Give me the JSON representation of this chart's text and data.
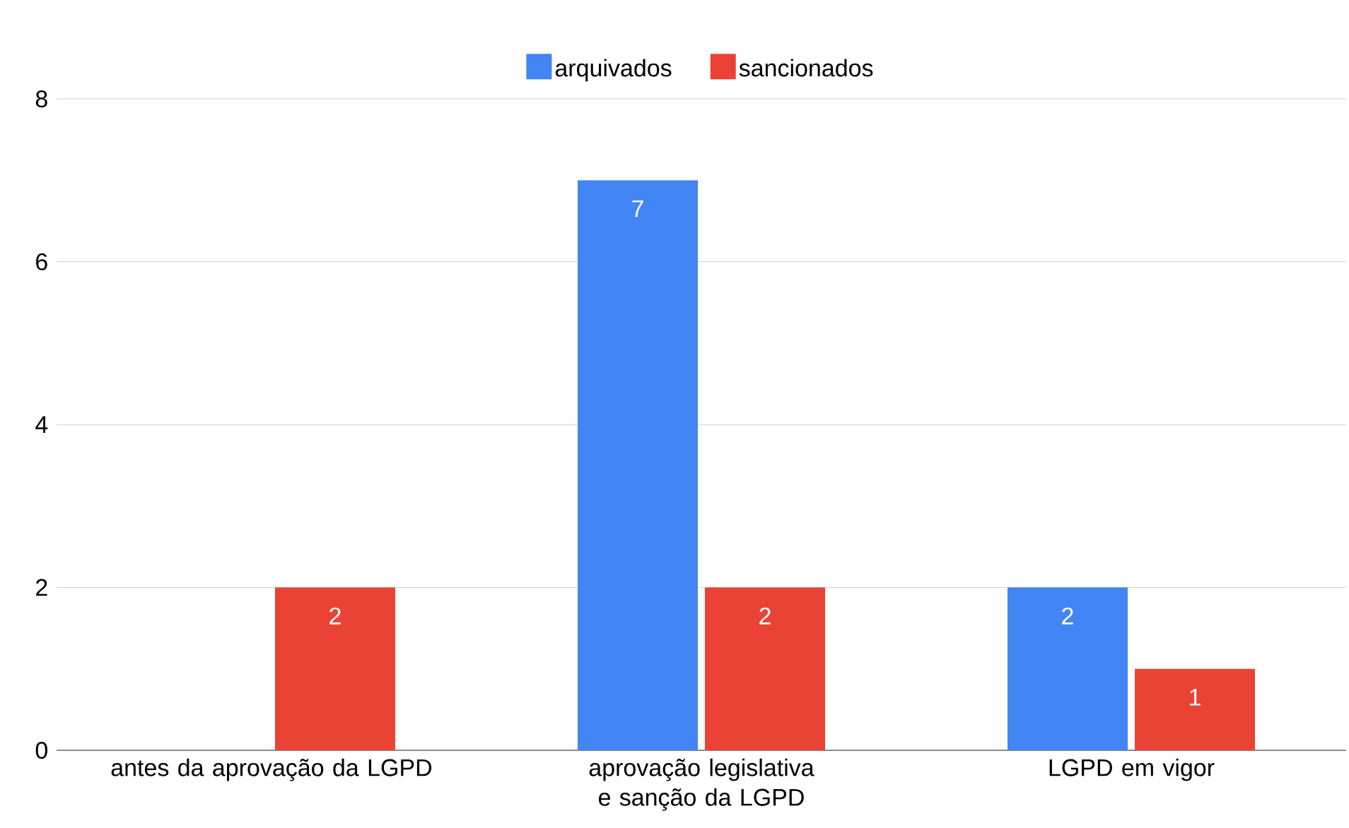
{
  "chart_data": {
    "type": "bar",
    "categories": [
      "antes da aprovação da LGPD",
      "aprovação legislativa e sanção da LGPD",
      "LGPD em vigor"
    ],
    "series": [
      {
        "name": "arquivados",
        "color": "#4285f4",
        "values": [
          null,
          7,
          2
        ]
      },
      {
        "name": "sancionados",
        "color": "#ea4335",
        "values": [
          2,
          2,
          1
        ]
      }
    ],
    "ylim": [
      0,
      8
    ],
    "yticks": [
      0,
      2,
      4,
      6,
      8
    ],
    "grid": "y",
    "legend": "top",
    "data_labels": true
  }
}
